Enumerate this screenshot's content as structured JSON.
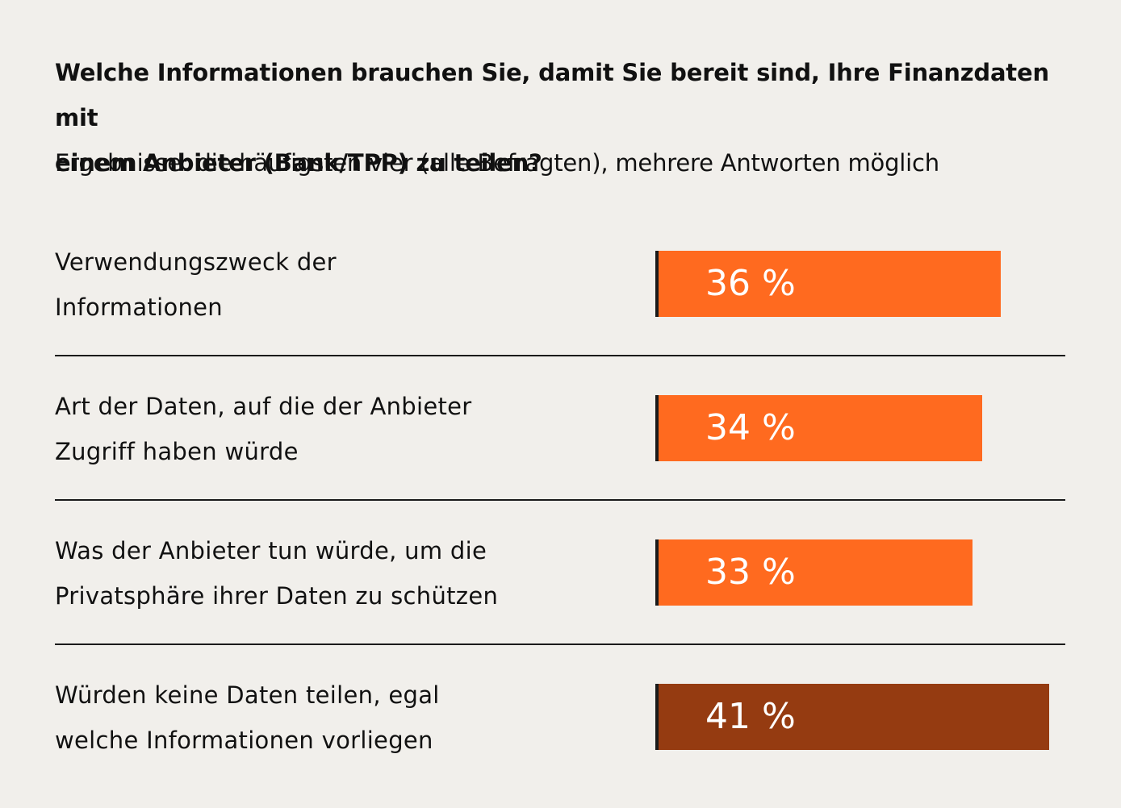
{
  "chart_data": {
    "type": "bar",
    "title_lines": [
      "Welche Informationen brauchen Sie, damit Sie bereit sind, Ihre Finanzdaten mit",
      "einem Anbieter (Bank/TPP) zu teilen?"
    ],
    "subtitle": "Ergebnisse: die häufigsten vier (alle Befragten), mehrere Antworten möglich",
    "unit": "%",
    "categories": [
      [
        "Verwendungszweck der",
        "Informationen"
      ],
      [
        "Art der Daten, auf die der Anbieter",
        "Zugriff haben würde"
      ],
      [
        "Was der Anbieter tun würde, um die",
        "Privatsphäre ihrer Daten zu schützen"
      ],
      [
        "Würden keine Daten teilen, egal",
        "welche Informationen vorliegen"
      ]
    ],
    "values": [
      36,
      34,
      33,
      41
    ],
    "value_labels": [
      "36 %",
      "34 %",
      "33 %",
      "41 %"
    ],
    "colors": [
      "#ff6a1f",
      "#ff6a1f",
      "#ff6a1f",
      "#953b11"
    ],
    "orientation": "horizontal",
    "grid": false
  }
}
